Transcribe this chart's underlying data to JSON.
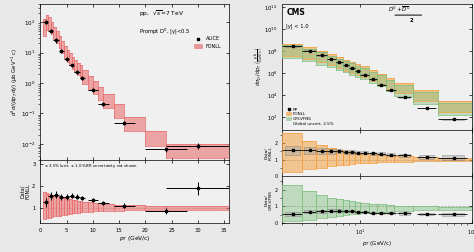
{
  "left": {
    "title": "pp,  $\\sqrt{s}$=7 TeV",
    "ylabel_main": "$d^2\\sigma/(dp_T\\,dy)$ ($\\mu$b GeV$^{-1}$ c)",
    "xlabel": "$p_T$ (GeV/c)",
    "note": "$\\pm$ 3.5% lumi, $\\pm$ 1.0% BR uncertainty not shown",
    "alice_pt": [
      1.0,
      2.0,
      3.0,
      4.0,
      5.0,
      6.0,
      7.0,
      8.0,
      10.0,
      12.0,
      16.0,
      24.0,
      30.0
    ],
    "alice_val": [
      100,
      52,
      25,
      11,
      6.2,
      3.8,
      2.3,
      1.45,
      0.6,
      0.2,
      0.05,
      0.0065,
      0.0085
    ],
    "alice_yerr": [
      15,
      8,
      4,
      1.6,
      0.9,
      0.55,
      0.35,
      0.22,
      0.09,
      0.03,
      0.008,
      0.001,
      0.002
    ],
    "alice_xerr": [
      0.5,
      0.5,
      0.5,
      0.5,
      0.5,
      0.5,
      0.5,
      0.5,
      1.0,
      1.0,
      2.0,
      4.0,
      6.0
    ],
    "fonll_pt_lo": [
      0.5,
      1.0,
      1.5,
      2.0,
      2.5,
      3.0,
      3.5,
      4.0,
      4.5,
      5.0,
      5.5,
      6.0,
      6.5,
      7.0,
      7.5,
      8.0,
      9.0,
      10.0,
      11.0,
      12.0,
      14.0,
      16.0,
      20.0,
      24.0
    ],
    "fonll_pt_hi": [
      1.0,
      1.5,
      2.0,
      2.5,
      3.0,
      3.5,
      4.0,
      4.5,
      5.0,
      5.5,
      6.0,
      6.5,
      7.0,
      7.5,
      8.0,
      9.0,
      10.0,
      11.0,
      12.0,
      14.0,
      16.0,
      20.0,
      24.0,
      36.0
    ],
    "fonll_lo": [
      35,
      55,
      55,
      40,
      28,
      20,
      14,
      9.5,
      6.8,
      5.0,
      3.8,
      2.9,
      2.3,
      1.85,
      1.5,
      0.95,
      0.65,
      0.43,
      0.28,
      0.155,
      0.07,
      0.026,
      0.0085,
      0.0035
    ],
    "fonll_hi": [
      130,
      175,
      145,
      100,
      70,
      50,
      35,
      24,
      17,
      12.5,
      9.5,
      7.2,
      5.7,
      4.6,
      3.8,
      2.6,
      1.75,
      1.15,
      0.76,
      0.44,
      0.2,
      0.075,
      0.026,
      0.0095
    ],
    "ratio_alice_pt": [
      1.0,
      2.0,
      3.0,
      4.0,
      5.0,
      6.0,
      7.0,
      8.0,
      10.0,
      12.0,
      16.0,
      24.0,
      30.0
    ],
    "ratio_alice_val": [
      1.25,
      1.55,
      1.6,
      1.5,
      1.5,
      1.55,
      1.5,
      1.45,
      1.35,
      1.2,
      1.1,
      0.85,
      1.9
    ],
    "ratio_alice_err": [
      0.2,
      0.18,
      0.15,
      0.14,
      0.13,
      0.12,
      0.12,
      0.11,
      0.1,
      0.09,
      0.1,
      0.12,
      0.3
    ],
    "ratio_alice_xerr": [
      0.5,
      0.5,
      0.5,
      0.5,
      0.5,
      0.5,
      0.5,
      0.5,
      1.0,
      1.0,
      2.0,
      4.0,
      6.0
    ],
    "ratio_fonll_lo": [
      0.5,
      0.52,
      0.55,
      0.58,
      0.6,
      0.62,
      0.64,
      0.66,
      0.68,
      0.7,
      0.72,
      0.74,
      0.76,
      0.78,
      0.79,
      0.8,
      0.82,
      0.83,
      0.84,
      0.85,
      0.87,
      0.88,
      0.9,
      0.91
    ],
    "ratio_fonll_hi": [
      1.7,
      1.68,
      1.65,
      1.6,
      1.56,
      1.52,
      1.49,
      1.46,
      1.43,
      1.41,
      1.38,
      1.36,
      1.34,
      1.32,
      1.3,
      1.28,
      1.25,
      1.22,
      1.2,
      1.17,
      1.14,
      1.11,
      1.08,
      1.06
    ],
    "fonll_color": "#e87070",
    "alice_color": "black",
    "ylim_main": [
      0.003,
      400
    ],
    "ylim_ratio": [
      0.3,
      3.2
    ],
    "xlim": [
      0,
      36
    ]
  },
  "right": {
    "ylabel_main": "$d\\sigma_{D^0}/dp_T$ $\\left(\\frac{\\mathrm{pb}}{\\mathrm{GeV}/c}\\right)$",
    "xlabel": "$p_T$ (GeV/c)",
    "cms_pt": [
      2.5,
      3.5,
      4.5,
      5.5,
      6.5,
      7.5,
      8.5,
      9.5,
      11.0,
      13.0,
      15.5,
      19.0,
      25.0,
      40.0,
      70.0
    ],
    "cms_val": [
      280000000.0,
      110000000.0,
      45000000.0,
      20000000.0,
      10000000.0,
      5200000.0,
      2800000.0,
      1700000.0,
      750000.0,
      280000.0,
      95000.0,
      28000.0,
      6500,
      720,
      70
    ],
    "cms_yerr": [
      40000000.0,
      15000000.0,
      6000000.0,
      2800000.0,
      1400000.0,
      750000.0,
      400000.0,
      250000.0,
      110000.0,
      42000.0,
      14000.0,
      4200,
      980,
      108,
      10.5
    ],
    "cms_xerr": [
      0.5,
      0.5,
      0.5,
      0.5,
      0.5,
      0.5,
      0.5,
      0.5,
      1.0,
      1.0,
      1.5,
      2.0,
      3.5,
      8.0,
      20.0
    ],
    "cms_syst_lo": [
      25000000.0,
      10000000.0,
      4000000.0,
      1800000.0,
      900000.0,
      500000.0,
      250000.0,
      150000.0,
      70000.0,
      25000.0,
      9000.0,
      2800,
      600,
      70,
      8
    ],
    "cms_syst_hi": [
      25000000.0,
      10000000.0,
      4000000.0,
      1800000.0,
      900000.0,
      500000.0,
      250000.0,
      150000.0,
      70000.0,
      25000.0,
      9000.0,
      2800,
      600,
      70,
      8
    ],
    "fonll_pt_edges": [
      2,
      3,
      4,
      5,
      6,
      7,
      8,
      9,
      10,
      12,
      14,
      17,
      20,
      30,
      50,
      100
    ],
    "fonll_lo": [
      40000000.0,
      20000000.0,
      10000000.0,
      5500000.0,
      3000000.0,
      1800000.0,
      1100000.0,
      750000.0,
      480000.0,
      210000.0,
      110000.0,
      42000.0,
      15000.0,
      3200,
      330,
      25
    ],
    "fonll_hi": [
      450000000.0,
      220000000.0,
      110000000.0,
      55000000.0,
      30000000.0,
      17000000.0,
      10500000.0,
      6500000.0,
      4200000.0,
      1850000.0,
      950000.0,
      360000.0,
      130000.0,
      28000.0,
      2800,
      260
    ],
    "gmvfns_lo": [
      25000000.0,
      12000000.0,
      6000000.0,
      3500000.0,
      2000000.0,
      1200000.0,
      750000.0,
      500000.0,
      320000.0,
      140000.0,
      65000.0,
      25000.0,
      9000,
      1800,
      185,
      15
    ],
    "gmvfns_hi": [
      350000000.0,
      170000000.0,
      80000000.0,
      40000000.0,
      22000000.0,
      13000000.0,
      8000000.0,
      5000000.0,
      3200000.0,
      1400000.0,
      700000.0,
      270000.0,
      95000.0,
      20000.0,
      2000,
      185
    ],
    "ratio1_cms_pt": [
      2.5,
      3.5,
      4.5,
      5.5,
      6.5,
      7.5,
      8.5,
      9.5,
      11.0,
      13.0,
      15.5,
      19.0,
      25.0,
      40.0,
      70.0
    ],
    "ratio1_cms_val": [
      1.55,
      1.55,
      1.5,
      1.5,
      1.5,
      1.48,
      1.45,
      1.42,
      1.4,
      1.38,
      1.35,
      1.3,
      1.25,
      1.15,
      1.1
    ],
    "ratio1_cms_err": [
      0.25,
      0.2,
      0.17,
      0.15,
      0.13,
      0.12,
      0.11,
      0.1,
      0.09,
      0.09,
      0.09,
      0.09,
      0.1,
      0.11,
      0.15
    ],
    "ratio1_fonll_lo": [
      0.28,
      0.42,
      0.52,
      0.6,
      0.66,
      0.7,
      0.74,
      0.77,
      0.79,
      0.81,
      0.83,
      0.85,
      0.87,
      0.89,
      0.91,
      0.93
    ],
    "ratio1_fonll_hi": [
      2.6,
      2.1,
      1.85,
      1.68,
      1.58,
      1.5,
      1.44,
      1.4,
      1.36,
      1.32,
      1.28,
      1.24,
      1.2,
      1.15,
      1.1,
      1.06
    ],
    "ratio2_cms_pt": [
      2.5,
      3.5,
      4.5,
      5.5,
      6.5,
      7.5,
      8.5,
      9.5,
      11.0,
      13.0,
      15.5,
      19.0,
      25.0,
      40.0,
      70.0
    ],
    "ratio2_cms_val": [
      0.55,
      0.68,
      0.72,
      0.75,
      0.75,
      0.72,
      0.7,
      0.68,
      0.65,
      0.63,
      0.62,
      0.6,
      0.58,
      0.55,
      0.52
    ],
    "ratio2_cms_err": [
      0.1,
      0.1,
      0.09,
      0.08,
      0.07,
      0.07,
      0.06,
      0.06,
      0.06,
      0.06,
      0.06,
      0.06,
      0.07,
      0.08,
      0.1
    ],
    "ratio2_gmvfns_lo": [
      0.12,
      0.2,
      0.28,
      0.36,
      0.42,
      0.48,
      0.53,
      0.57,
      0.6,
      0.63,
      0.66,
      0.69,
      0.72,
      0.76,
      0.8,
      0.84
    ],
    "ratio2_gmvfns_hi": [
      2.3,
      1.9,
      1.68,
      1.52,
      1.42,
      1.35,
      1.29,
      1.24,
      1.2,
      1.16,
      1.12,
      1.08,
      1.04,
      1.01,
      0.98,
      0.95
    ],
    "fonll_color": "#f4a040",
    "gmvfns_color": "#80c080",
    "cms_color": "black",
    "ylim_main": [
      8,
      2000000000000.0
    ],
    "ylim_ratio1": [
      0,
      2.8
    ],
    "ylim_ratio2": [
      0,
      2.8
    ],
    "xlim": [
      2,
      100
    ]
  }
}
